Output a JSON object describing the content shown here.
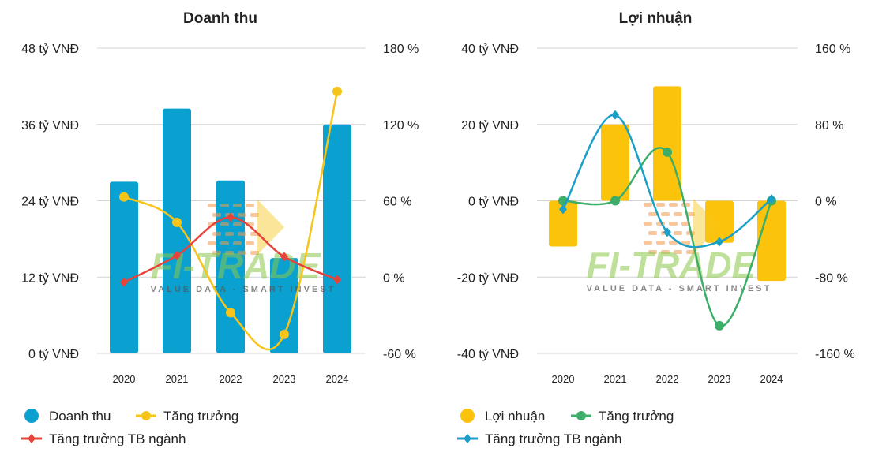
{
  "watermark": {
    "brand": "FI-TRADE",
    "tagline": "VALUE DATA - SMART INVEST"
  },
  "chart_data": [
    {
      "type": "bar",
      "title": "Doanh thu",
      "categories": [
        "2020",
        "2021",
        "2022",
        "2023",
        "2024"
      ],
      "y_ticks": [
        "48 tỷ VNĐ",
        "36 tỷ VNĐ",
        "24 tỷ VNĐ",
        "12 tỷ VNĐ",
        "0 tỷ VNĐ"
      ],
      "y2_ticks": [
        "180 %",
        "120 %",
        "60 %",
        "0 %",
        "-60 %"
      ],
      "ylim": [
        0,
        48
      ],
      "y2lim": [
        -60,
        180
      ],
      "grid": true,
      "legend_position": "bottom",
      "series": [
        {
          "name": "Doanh thu",
          "kind": "bar",
          "axis": "left",
          "color": "#0aa0d0",
          "values": [
            27,
            38.5,
            27.2,
            15,
            36
          ]
        },
        {
          "name": "Tăng trưởng",
          "kind": "line",
          "axis": "right",
          "color": "#f7c51a",
          "marker": "circle",
          "values": [
            63,
            43,
            -28,
            -45,
            146
          ]
        },
        {
          "name": "Tăng trưởng TB ngành",
          "kind": "line",
          "axis": "right",
          "color": "#e8433a",
          "marker": "diamond",
          "values": [
            -4,
            17,
            47,
            16,
            -2
          ]
        }
      ]
    },
    {
      "type": "bar",
      "title": "Lợi nhuận",
      "categories": [
        "2020",
        "2021",
        "2022",
        "2023",
        "2024"
      ],
      "y_ticks": [
        "40 tỷ VNĐ",
        "20 tỷ VNĐ",
        "0 tỷ VNĐ",
        "-20 tỷ VNĐ",
        "-40 tỷ VNĐ"
      ],
      "y2_ticks": [
        "160 %",
        "80 %",
        "0 %",
        "-80 %",
        "-160 %"
      ],
      "ylim": [
        -40,
        40
      ],
      "y2lim": [
        -160,
        160
      ],
      "grid": true,
      "legend_position": "bottom",
      "series": [
        {
          "name": "Lợi nhuận",
          "kind": "bar",
          "axis": "left",
          "color": "#fcc30c",
          "values": [
            -12,
            20,
            30,
            -11,
            -21
          ]
        },
        {
          "name": "Tăng trưởng",
          "kind": "line",
          "axis": "right",
          "color": "#3dae6a",
          "marker": "circle",
          "values": [
            0,
            0,
            51,
            -131,
            0
          ]
        },
        {
          "name": "Tăng trưởng TB ngành",
          "kind": "line",
          "axis": "right",
          "color": "#1aa0c6",
          "marker": "diamond",
          "values": [
            -9,
            90,
            -33,
            -43,
            2
          ]
        }
      ]
    }
  ]
}
